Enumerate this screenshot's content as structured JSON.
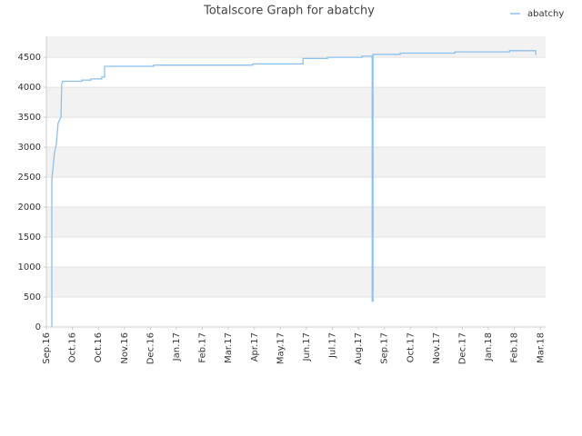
{
  "chart_data": {
    "type": "line",
    "title": "Totalscore Graph for abatchy",
    "x": [
      0.21,
      0.21,
      0.24,
      0.31,
      0.38,
      0.45,
      0.56,
      0.59,
      0.63,
      1.36,
      1.36,
      1.71,
      1.71,
      2.13,
      2.13,
      2.24,
      2.24,
      4.13,
      4.13,
      7.94,
      7.94,
      9.87,
      9.87,
      10.81,
      10.81,
      12.14,
      12.14,
      12.53,
      12.53,
      12.56,
      12.56,
      13.61,
      13.61,
      15.71,
      15.71,
      17.81,
      17.81,
      18.82,
      18.82
    ],
    "series": [
      {
        "name": "abatchy",
        "color": "#8cc0ee",
        "values": [
          0,
          2450,
          2600,
          2900,
          3050,
          3400,
          3500,
          4050,
          4100,
          4100,
          4120,
          4120,
          4140,
          4140,
          4170,
          4170,
          4350,
          4350,
          4370,
          4370,
          4390,
          4390,
          4480,
          4480,
          4500,
          4500,
          4520,
          4520,
          430,
          430,
          4550,
          4550,
          4570,
          4570,
          4590,
          4590,
          4610,
          4610,
          4540
        ]
      }
    ],
    "xlim": [
      0,
      19.2
    ],
    "xticks": [
      {
        "value": 0,
        "label": "Sep.16"
      },
      {
        "value": 1,
        "label": "Oct.16"
      },
      {
        "value": 2,
        "label": "Oct.16"
      },
      {
        "value": 3,
        "label": "Nov.16"
      },
      {
        "value": 4,
        "label": "Dec.16"
      },
      {
        "value": 5,
        "label": "Jan.17"
      },
      {
        "value": 6,
        "label": "Feb.17"
      },
      {
        "value": 7,
        "label": "Mar.17"
      },
      {
        "value": 8,
        "label": "Apr.17"
      },
      {
        "value": 9,
        "label": "May.17"
      },
      {
        "value": 10,
        "label": "Jun.17"
      },
      {
        "value": 11,
        "label": "Jul.17"
      },
      {
        "value": 12,
        "label": "Aug.17"
      },
      {
        "value": 13,
        "label": "Sep.17"
      },
      {
        "value": 14,
        "label": "Oct.17"
      },
      {
        "value": 15,
        "label": "Nov.17"
      },
      {
        "value": 16,
        "label": "Dec.17"
      },
      {
        "value": 17,
        "label": "Jan.18"
      },
      {
        "value": 18,
        "label": "Feb.18"
      },
      {
        "value": 19,
        "label": "Mar.18"
      }
    ],
    "ylim": [
      0,
      4850
    ],
    "yticks": [
      0,
      500,
      1000,
      1500,
      2000,
      2500,
      3000,
      3500,
      4000,
      4500
    ],
    "grid": true,
    "legend": "top-right"
  }
}
